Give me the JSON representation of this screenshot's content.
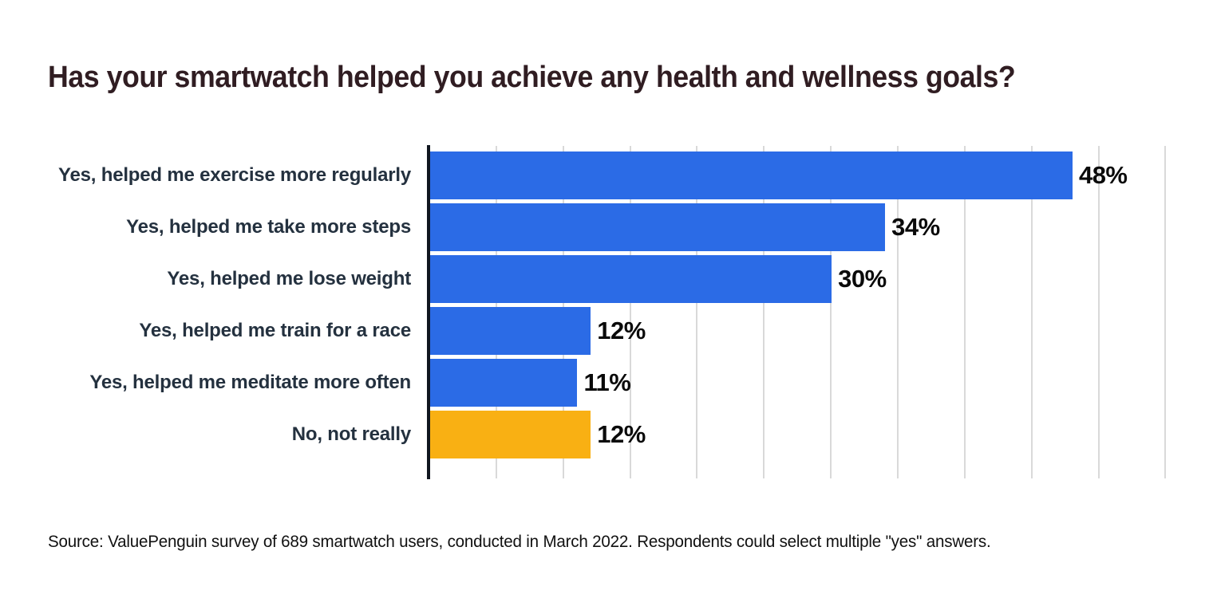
{
  "page": {
    "title": "Has your smartwatch helped you achieve any health and wellness goals?",
    "source_note": "Source: ValuePenguin survey of 689 smartwatch users, conducted in March 2022. Respondents could select multiple \"yes\" answers."
  },
  "colors": {
    "background": "#ffffff",
    "bar_default": "#2b6be6",
    "bar_highlight": "#f9b013",
    "title_text": "#301d22",
    "category_text": "#24313f",
    "value_text": "#0a0a0a",
    "gridline": "#d9d9d9",
    "axis_line": "#10161f"
  },
  "chart_data": {
    "type": "bar",
    "orientation": "horizontal",
    "title": "Has your smartwatch helped you achieve any health and wellness goals?",
    "categories": [
      "Yes, helped me exercise more regularly",
      "Yes, helped me take more steps",
      "Yes, helped me lose weight",
      "Yes, helped me train for a race",
      "Yes, helped me meditate more often",
      "No, not really"
    ],
    "values": [
      48,
      34,
      30,
      12,
      11,
      12
    ],
    "value_labels": [
      "48%",
      "34%",
      "30%",
      "12%",
      "11%",
      "12%"
    ],
    "bar_color_roles": [
      "default",
      "default",
      "default",
      "default",
      "default",
      "highlight"
    ],
    "xlabel": "",
    "ylabel": "",
    "xlim": [
      0,
      58
    ],
    "gridlines_at": [
      5,
      10,
      15,
      20,
      25,
      30,
      35,
      40,
      45,
      50,
      55
    ],
    "gridline_interval_pct": 5,
    "grid": "vertical-only",
    "legend": "none",
    "value_suffix": "%",
    "source": "Source: ValuePenguin survey of 689 smartwatch users, conducted in March 2022. Respondents could select multiple \"yes\" answers."
  }
}
